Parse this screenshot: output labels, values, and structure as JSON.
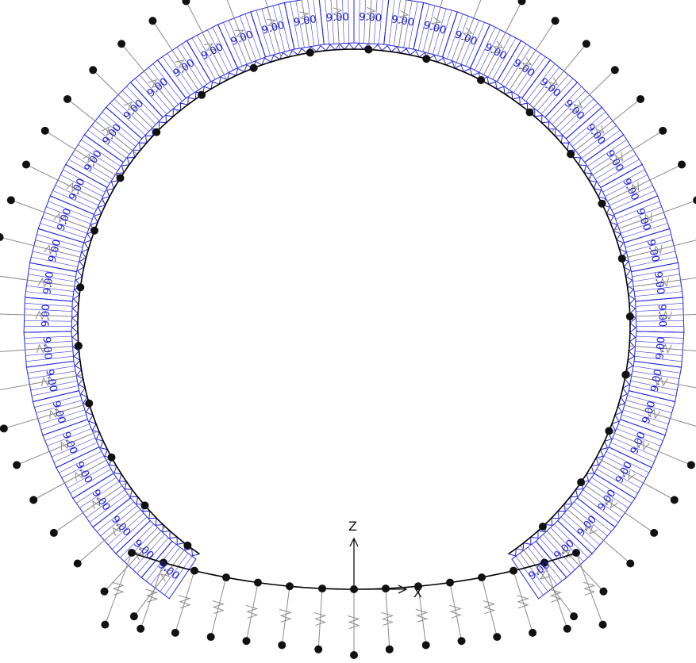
{
  "diagram": {
    "load_value_label": "9.00",
    "axes": {
      "x_label": "X",
      "z_label": "Z"
    },
    "colors": {
      "lining": "#000000",
      "load_outline": "#2323e0",
      "load_hatch": "#3d3de6",
      "load_text": "#1c1cd6",
      "spring": "#8a8a8a",
      "node": "#111111",
      "axis": "#111111"
    }
  }
}
